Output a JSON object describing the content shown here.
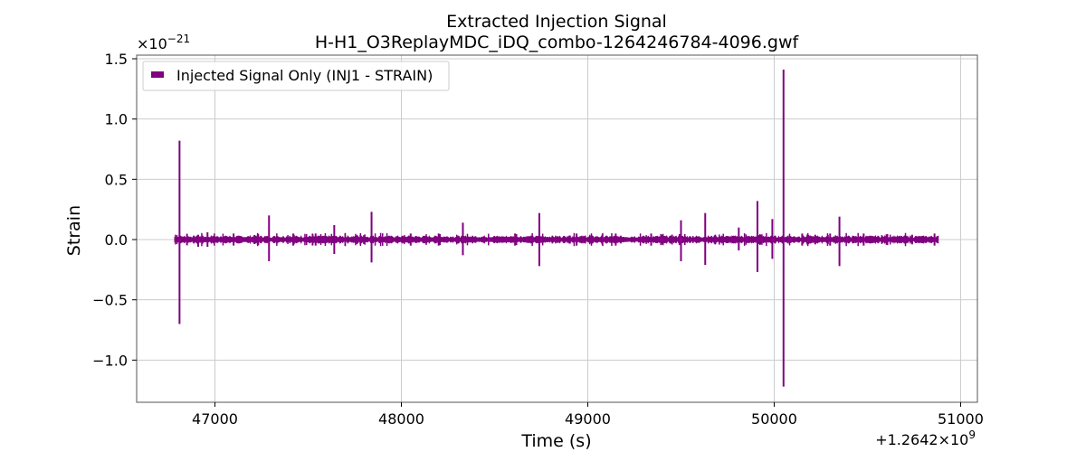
{
  "chart_data": {
    "type": "line",
    "title": "Extracted Injection Signal",
    "subtitle": "H-H1_O3ReplayMDC_iDQ_combo-1264246784-4096.gwf",
    "xlabel": "Time (s)",
    "ylabel": "Strain",
    "x_offset_text": "+1.2642×10",
    "x_offset_exp": "9",
    "y_scale_text": "×10",
    "y_scale_exp": "−21",
    "xlim": [
      46580,
      51090
    ],
    "ylim": [
      -1.35,
      1.53
    ],
    "x_ticks": [
      47000,
      48000,
      49000,
      50000,
      51000
    ],
    "x_tick_labels": [
      "47000",
      "48000",
      "49000",
      "50000",
      "51000"
    ],
    "y_ticks": [
      -1.0,
      -0.5,
      0.0,
      0.5,
      1.0,
      1.5
    ],
    "y_tick_labels": [
      "−1.0",
      "−0.5",
      "0.0",
      "0.5",
      "1.0",
      "1.5"
    ],
    "grid": true,
    "legend_position": "top-left",
    "color": "#800080",
    "series": [
      {
        "name": "Injected Signal Only (INJ1 - STRAIN)",
        "x_range": [
          46784,
          50880
        ],
        "baseline_amplitude": 0.03,
        "spikes": [
          {
            "x": 46810,
            "max": 0.82,
            "min": -0.7
          },
          {
            "x": 46910,
            "max": 0.04,
            "min": -0.06
          },
          {
            "x": 46960,
            "max": 0.06,
            "min": -0.06
          },
          {
            "x": 47100,
            "max": 0.05,
            "min": -0.05
          },
          {
            "x": 47290,
            "max": 0.2,
            "min": -0.18
          },
          {
            "x": 47420,
            "max": 0.05,
            "min": -0.05
          },
          {
            "x": 47540,
            "max": 0.05,
            "min": -0.05
          },
          {
            "x": 47640,
            "max": 0.12,
            "min": -0.12
          },
          {
            "x": 47840,
            "max": 0.23,
            "min": -0.19
          },
          {
            "x": 48050,
            "max": 0.05,
            "min": -0.05
          },
          {
            "x": 48200,
            "max": 0.05,
            "min": -0.05
          },
          {
            "x": 48330,
            "max": 0.14,
            "min": -0.13
          },
          {
            "x": 48610,
            "max": 0.05,
            "min": -0.05
          },
          {
            "x": 48740,
            "max": 0.22,
            "min": -0.22
          },
          {
            "x": 48940,
            "max": 0.05,
            "min": -0.05
          },
          {
            "x": 49150,
            "max": 0.05,
            "min": -0.05
          },
          {
            "x": 49340,
            "max": 0.05,
            "min": -0.05
          },
          {
            "x": 49500,
            "max": 0.16,
            "min": -0.18
          },
          {
            "x": 49630,
            "max": 0.22,
            "min": -0.21
          },
          {
            "x": 49810,
            "max": 0.1,
            "min": -0.09
          },
          {
            "x": 49910,
            "max": 0.32,
            "min": -0.27
          },
          {
            "x": 49990,
            "max": 0.17,
            "min": -0.16
          },
          {
            "x": 50050,
            "max": 1.41,
            "min": -1.22
          },
          {
            "x": 50150,
            "max": 0.05,
            "min": -0.05
          },
          {
            "x": 50220,
            "max": 0.04,
            "min": -0.04
          },
          {
            "x": 50300,
            "max": 0.05,
            "min": -0.05
          },
          {
            "x": 50350,
            "max": 0.19,
            "min": -0.22
          },
          {
            "x": 50480,
            "max": 0.05,
            "min": -0.05
          },
          {
            "x": 50740,
            "max": 0.04,
            "min": -0.04
          },
          {
            "x": 50860,
            "max": 0.05,
            "min": -0.05
          }
        ]
      }
    ]
  }
}
